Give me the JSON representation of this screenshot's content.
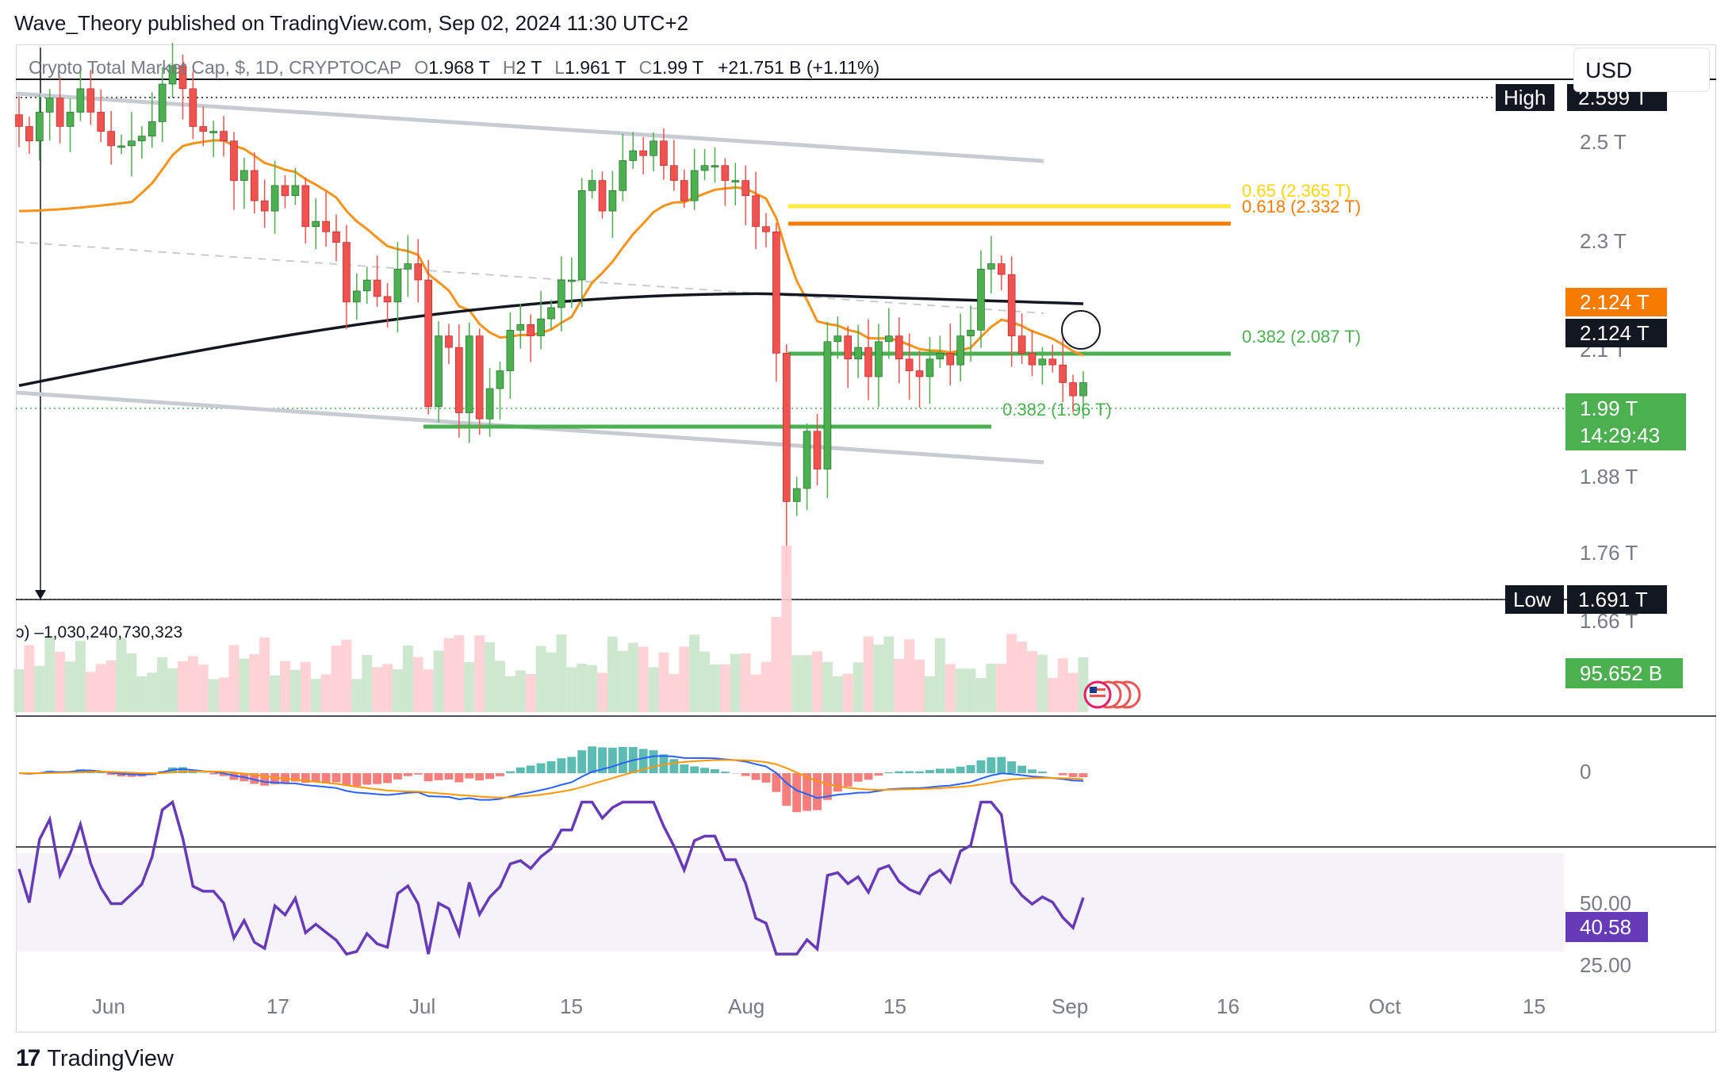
{
  "header": {
    "published": "Wave_Theory published on TradingView.com, Sep 02, 2024 11:30 UTC+2"
  },
  "legend": {
    "symbol": "Crypto Total Market Cap, $, 1D, CRYPTOCAP",
    "open_label": "O",
    "open": "1.968 T",
    "high_label": "H",
    "high": "2 T",
    "low_label": "L",
    "low": "1.961 T",
    "close_label": "C",
    "close": "1.99 T",
    "change": "+21.751 B (+1.11%)"
  },
  "currency": "USD",
  "volume_legend": "ↄ) –1,030,240,730,323",
  "footer": {
    "logo": "17",
    "text": "TradingView"
  },
  "colors": {
    "up": "#26a69a",
    "up_body": "#4caf50",
    "down": "#ef5350",
    "ema50": "#f7931a",
    "ema200": "#131722",
    "channel": "#c9cbd3",
    "support": "#4caf50",
    "fib_065": "#ffeb3b",
    "fib_0618": "#f57c00",
    "rsi": "#673ab7",
    "macd": "#2962ff",
    "signal": "#ff9800"
  },
  "price_axis": {
    "ticks": [
      "2.5 T",
      "2.3 T",
      "2.1 T",
      "1.88 T",
      "1.76 T",
      "1.66 T"
    ],
    "high_tag_label": "High",
    "high_tag_value": "2.599 T",
    "low_tag_label": "Low",
    "low_tag_value": "1.691 T",
    "ema50_tag": "2.124 T",
    "ema200_tag": "2.124 T",
    "last_price_tag": "1.99 T",
    "countdown_tag": "14:29:43",
    "volume_tag": "95.652 B",
    "macd_zero": "0",
    "rsi_ticks": [
      "50.00",
      "25.00"
    ],
    "rsi_tag": "40.58"
  },
  "time_axis": [
    "Jun",
    "17",
    "Jul",
    "15",
    "Aug",
    "15",
    "Sep",
    "16",
    "Oct",
    "15"
  ],
  "annotations": {
    "fib_065": "0.65 (2.365 T)",
    "fib_0618": "0.618 (2.332 T)",
    "fib_0382_upper": "0.382 (2.087 T)",
    "fib_0382_lower": "0.382 (1.96 T)"
  },
  "chart_data": {
    "type": "candlestick",
    "symbol": "Crypto Total Market Cap, $, 1D, CRYPTOCAP",
    "y_scale": "log",
    "y_range_T": [
      1.62,
      2.64
    ],
    "high_T": 2.599,
    "low_T": 1.691,
    "last_T": 1.99,
    "ema50_T": 2.124,
    "ema200_T": 2.124,
    "fib_levels_T": {
      "0.65": 2.365,
      "0.618": 2.332,
      "0.382_upper": 2.087,
      "0.382_lower": 1.96
    },
    "support_levels_T": [
      2.087,
      1.96
    ],
    "close_path_T": [
      2.47,
      2.44,
      2.5,
      2.53,
      2.47,
      2.5,
      2.55,
      2.5,
      2.46,
      2.43,
      2.43,
      2.44,
      2.45,
      2.48,
      2.56,
      2.6,
      2.55,
      2.47,
      2.46,
      2.46,
      2.44,
      2.36,
      2.38,
      2.32,
      2.3,
      2.35,
      2.33,
      2.35,
      2.27,
      2.28,
      2.26,
      2.24,
      2.13,
      2.15,
      2.17,
      2.14,
      2.13,
      2.19,
      2.2,
      2.17,
      1.95,
      2.07,
      2.05,
      1.94,
      2.07,
      1.93,
      1.98,
      2.01,
      2.08,
      2.09,
      2.07,
      2.1,
      2.12,
      2.17,
      2.17,
      2.34,
      2.36,
      2.3,
      2.34,
      2.4,
      2.42,
      2.41,
      2.44,
      2.39,
      2.36,
      2.32,
      2.38,
      2.39,
      2.39,
      2.36,
      2.36,
      2.33,
      2.27,
      2.26,
      2.04,
      1.8,
      1.82,
      1.91,
      1.85,
      2.06,
      2.07,
      2.03,
      2.05,
      2.0,
      2.06,
      2.07,
      2.03,
      2.01,
      2.0,
      2.03,
      2.04,
      2.02,
      2.07,
      2.08,
      2.19,
      2.2,
      2.18,
      2.07,
      2.04,
      2.02,
      2.03,
      2.02,
      1.99,
      1.968,
      1.99
    ],
    "volume_B": [
      95.652
    ],
    "rsi": {
      "last": 40.58,
      "levels": [
        50,
        25
      ]
    }
  }
}
